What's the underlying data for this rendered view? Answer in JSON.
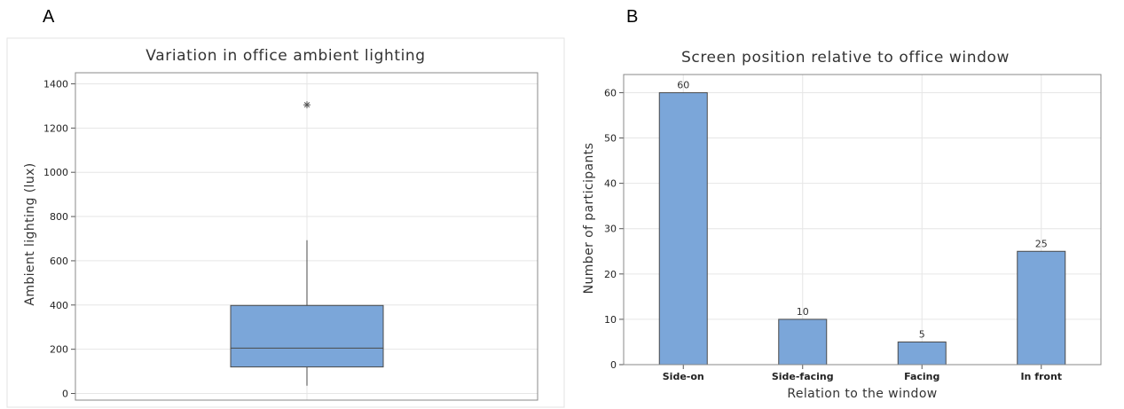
{
  "panels": [
    {
      "letter": "A"
    },
    {
      "letter": "B"
    }
  ],
  "chart_data": [
    {
      "type": "box",
      "title": "Variation in office ambient lighting",
      "xlabel": "",
      "ylabel": "Ambient lighting (lux)",
      "ylim": [
        -30,
        1450
      ],
      "yticks": [
        0,
        200,
        400,
        600,
        800,
        1000,
        1200,
        1400
      ],
      "grid": true,
      "box": {
        "whisker_low": 35,
        "q1": 120,
        "median": 205,
        "q3": 398,
        "whisker_high": 693,
        "outliers": [
          1305
        ]
      },
      "colors": {
        "fill": "#7ba6d9",
        "edge": "#4a4a4a"
      }
    },
    {
      "type": "bar",
      "title": "Screen position relative to office window",
      "xlabel": "Relation to the window",
      "ylabel": "Number of participants",
      "categories": [
        "Side-on",
        "Side-facing",
        "Facing",
        "In front"
      ],
      "values": [
        60,
        10,
        5,
        25
      ],
      "data_labels": [
        "60",
        "10",
        "5",
        "25"
      ],
      "ylim": [
        0,
        64
      ],
      "yticks": [
        0,
        10,
        20,
        30,
        40,
        50,
        60
      ],
      "grid": true,
      "colors": {
        "fill": "#7ba6d9",
        "edge": "#4a4a4a"
      }
    }
  ]
}
